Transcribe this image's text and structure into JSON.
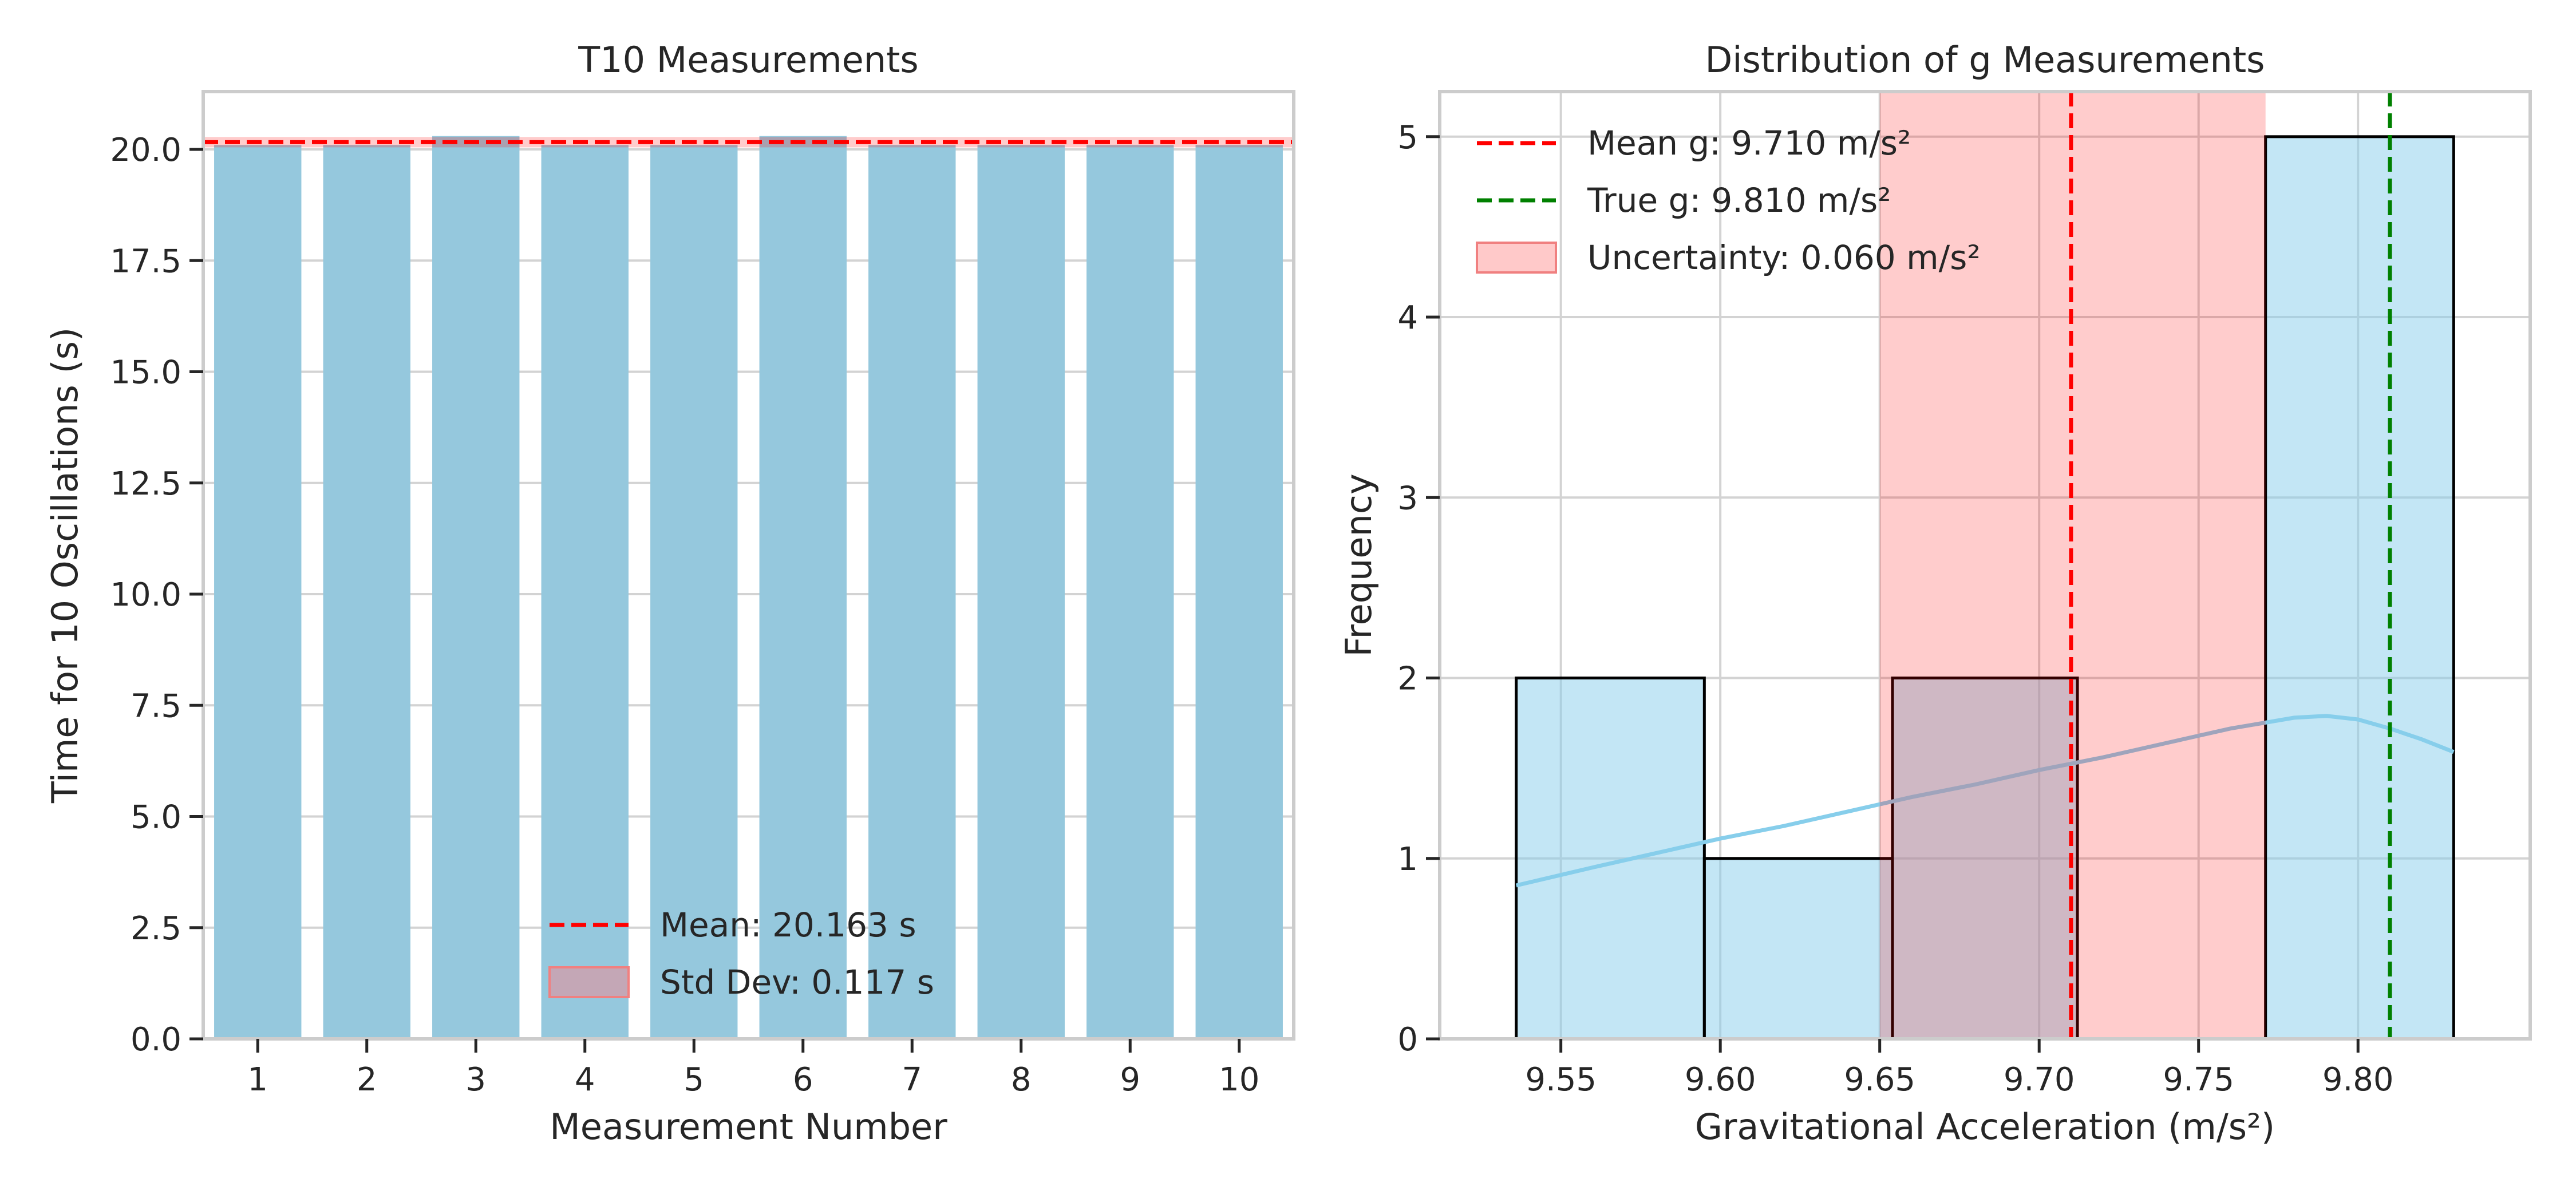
{
  "chart_data": [
    {
      "type": "bar",
      "title": "T10 Measurements",
      "xlabel": "Measurement Number",
      "ylabel": "Time for 10 Oscillations (s)",
      "categories": [
        "1",
        "2",
        "3",
        "4",
        "5",
        "6",
        "7",
        "8",
        "9",
        "10"
      ],
      "values": [
        20.1,
        20.1,
        20.3,
        20.1,
        20.1,
        20.3,
        20.1,
        20.1,
        20.1,
        20.1
      ],
      "ylim": [
        0,
        21.3
      ],
      "yticks": [
        "0.0",
        "2.5",
        "5.0",
        "7.5",
        "10.0",
        "12.5",
        "15.0",
        "17.5",
        "20.0"
      ],
      "mean": 20.163,
      "std_dev": 0.117,
      "legend": [
        "Mean: 20.163 s",
        "Std Dev: 0.117 s"
      ],
      "legend_position": "bottom-center",
      "grid": true,
      "colors": {
        "bar": "#95c8dd",
        "mean_line": "#ff0000",
        "band": "#ff0000"
      }
    },
    {
      "type": "histogram",
      "title": "Distribution of g Measurements",
      "xlabel": "Gravitational Acceleration (m/s²)",
      "ylabel": "Frequency",
      "bins": [
        {
          "start": 9.536,
          "end": 9.595,
          "count": 2
        },
        {
          "start": 9.595,
          "end": 9.654,
          "count": 1
        },
        {
          "start": 9.654,
          "end": 9.712,
          "count": 2
        },
        {
          "start": 9.712,
          "end": 9.771,
          "count": 0
        },
        {
          "start": 9.771,
          "end": 9.83,
          "count": 5
        }
      ],
      "kde": [
        [
          9.536,
          0.85
        ],
        [
          9.56,
          0.95
        ],
        [
          9.58,
          1.03
        ],
        [
          9.6,
          1.11
        ],
        [
          9.62,
          1.18
        ],
        [
          9.64,
          1.26
        ],
        [
          9.66,
          1.34
        ],
        [
          9.68,
          1.41
        ],
        [
          9.7,
          1.49
        ],
        [
          9.72,
          1.56
        ],
        [
          9.74,
          1.64
        ],
        [
          9.76,
          1.72
        ],
        [
          9.78,
          1.78
        ],
        [
          9.79,
          1.79
        ],
        [
          9.8,
          1.77
        ],
        [
          9.81,
          1.72
        ],
        [
          9.82,
          1.66
        ],
        [
          9.83,
          1.59
        ]
      ],
      "mean_g": 9.71,
      "true_g": 9.81,
      "uncertainty": 0.06,
      "uncertainty_band": [
        9.65,
        9.771
      ],
      "xlim": [
        9.512,
        9.854
      ],
      "ylim": [
        0,
        5.25
      ],
      "xticks": [
        "9.55",
        "9.60",
        "9.65",
        "9.70",
        "9.75",
        "9.80"
      ],
      "yticks": [
        "0",
        "1",
        "2",
        "3",
        "4",
        "5"
      ],
      "legend": [
        "Mean g: 9.710 m/s²",
        "True g: 9.810 m/s²",
        "Uncertainty: 0.060 m/s²"
      ],
      "legend_position": "top-left",
      "grid": true,
      "colors": {
        "bar": "#87ceeb",
        "kde": "#87ceeb",
        "mean_line": "#ff0000",
        "true_line": "#008000",
        "band": "#ff0000"
      }
    }
  ]
}
